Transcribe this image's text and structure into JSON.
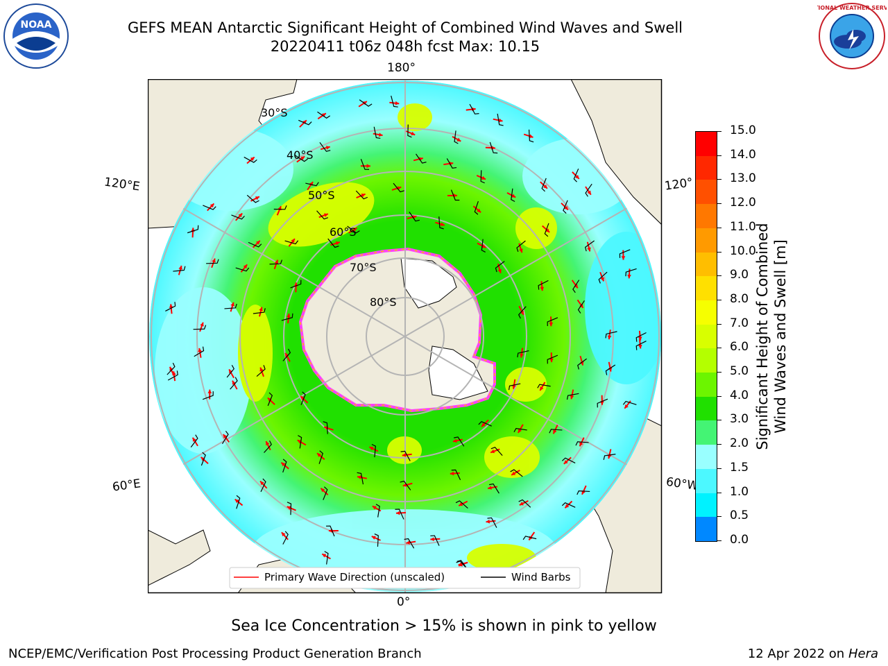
{
  "title": {
    "line1": "GEFS MEAN Antarctic Significant Height of Combined Wind Waves and Swell",
    "line2": "20220411 t06z 048h fcst   Max: 10.15"
  },
  "logos": {
    "left": {
      "icon": "noaa-logo",
      "text": "NOAA"
    },
    "right": {
      "icon": "nws-logo",
      "text": "NATIONAL WEATHER SERVICE"
    }
  },
  "map": {
    "projection": "south-polar-stereographic",
    "longitude_labels": [
      "180°",
      "120°E",
      "120°",
      "60°E",
      "60°W",
      "0°"
    ],
    "latitude_labels": [
      "30°S",
      "40°S",
      "50°S",
      "60°S",
      "70°S",
      "80°S"
    ],
    "colors": {
      "land": "#efebdc",
      "ice": "#ffffff",
      "ice_edge": "#ff40ff",
      "gridline": "#b4b4b4",
      "wave_arrow": "#ff0000",
      "wind_barb": "#000000"
    }
  },
  "legend": {
    "primary_wave_label": "Primary Wave Direction (unscaled)",
    "wind_barbs_label": "Wind Barbs"
  },
  "colorbar": {
    "label_line1": "Significant Height of Combined",
    "label_line2": "Wind Waves and Swell [m]",
    "ticks": [
      "15.0",
      "14.0",
      "13.0",
      "12.0",
      "11.0",
      "10.0",
      "9.0",
      "8.0",
      "7.0",
      "6.0",
      "5.0",
      "4.0",
      "3.0",
      "2.0",
      "1.5",
      "1.0",
      "0.5",
      "0.0"
    ],
    "colors": [
      "#ff0000",
      "#ff2800",
      "#ff5000",
      "#ff7800",
      "#ff9a00",
      "#ffbe00",
      "#ffe000",
      "#f6ff00",
      "#d8ff00",
      "#b4ff00",
      "#6cf500",
      "#20e000",
      "#44f474",
      "#99ffff",
      "#4cf8ff",
      "#00f2ff",
      "#0088ff",
      "#0000ff"
    ]
  },
  "caption": "Sea Ice Concentration > 15% is shown in pink to yellow",
  "footer": {
    "left": "NCEP/EMC/Verification Post Processing Product Generation Branch",
    "right_date": "12 Apr 2022 on ",
    "right_host": "Hera"
  }
}
